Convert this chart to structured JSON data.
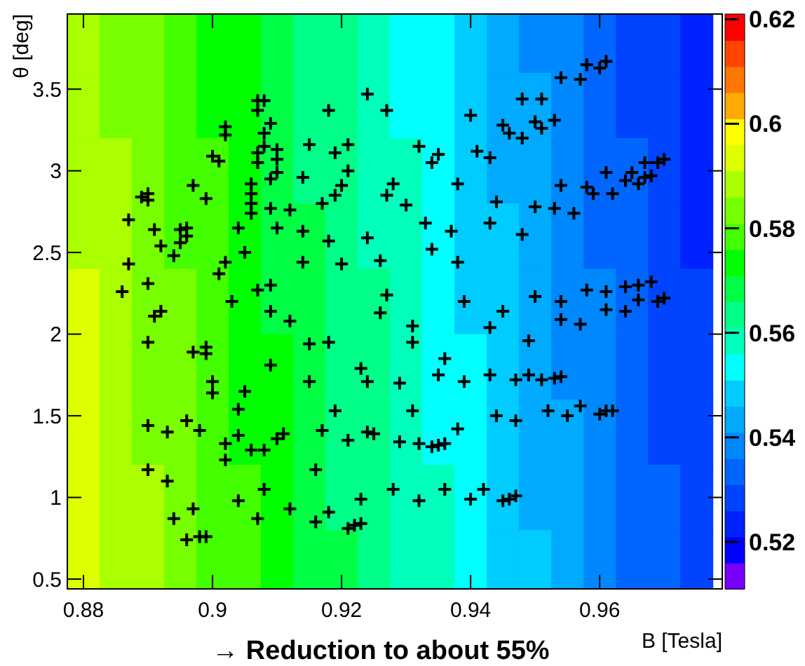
{
  "chart_data": {
    "type": "heatmap",
    "xlabel": "B [Tesla]",
    "ylabel": "θ [deg]",
    "annotations": [
      "→ Reduction to about 55%"
    ],
    "x": [
      0.88,
      0.885,
      0.89,
      0.895,
      0.9,
      0.905,
      0.91,
      0.915,
      0.92,
      0.925,
      0.93,
      0.935,
      0.94,
      0.945,
      0.95,
      0.955,
      0.96,
      0.965,
      0.97,
      0.975
    ],
    "y": [
      3.8,
      3.4,
      3.0,
      2.6,
      2.2,
      1.8,
      1.4,
      1.0,
      0.6
    ],
    "cells": [
      [
        0.589,
        0.586,
        0.582,
        0.579,
        0.575,
        0.572,
        0.568,
        0.565,
        0.561,
        0.558,
        0.554,
        0.551,
        0.547,
        0.544,
        0.54,
        0.537,
        0.533,
        0.53,
        0.526,
        0.523
      ],
      [
        0.59,
        0.586,
        0.583,
        0.579,
        0.576,
        0.572,
        0.569,
        0.565,
        0.562,
        0.558,
        0.555,
        0.551,
        0.548,
        0.544,
        0.541,
        0.537,
        0.534,
        0.53,
        0.527,
        0.523
      ],
      [
        0.591,
        0.587,
        0.584,
        0.58,
        0.577,
        0.573,
        0.57,
        0.566,
        0.563,
        0.559,
        0.556,
        0.552,
        0.549,
        0.545,
        0.542,
        0.538,
        0.535,
        0.531,
        0.528,
        0.524
      ],
      [
        0.591,
        0.588,
        0.584,
        0.581,
        0.577,
        0.574,
        0.57,
        0.567,
        0.563,
        0.56,
        0.556,
        0.553,
        0.549,
        0.546,
        0.542,
        0.539,
        0.535,
        0.532,
        0.528,
        0.525
      ],
      [
        0.592,
        0.589,
        0.585,
        0.582,
        0.578,
        0.575,
        0.571,
        0.568,
        0.564,
        0.561,
        0.557,
        0.554,
        0.55,
        0.547,
        0.543,
        0.54,
        0.536,
        0.533,
        0.529,
        0.526
      ],
      [
        0.593,
        0.589,
        0.586,
        0.582,
        0.579,
        0.575,
        0.572,
        0.568,
        0.565,
        0.561,
        0.558,
        0.554,
        0.551,
        0.547,
        0.544,
        0.54,
        0.537,
        0.533,
        0.53,
        0.526
      ],
      [
        0.593,
        0.59,
        0.586,
        0.583,
        0.579,
        0.576,
        0.572,
        0.569,
        0.565,
        0.562,
        0.558,
        0.555,
        0.551,
        0.548,
        0.544,
        0.541,
        0.537,
        0.534,
        0.53,
        0.527
      ],
      [
        0.594,
        0.591,
        0.587,
        0.584,
        0.58,
        0.577,
        0.573,
        0.57,
        0.566,
        0.563,
        0.559,
        0.556,
        0.552,
        0.549,
        0.545,
        0.542,
        0.538,
        0.535,
        0.531,
        0.528
      ],
      [
        0.595,
        0.591,
        0.588,
        0.584,
        0.581,
        0.577,
        0.574,
        0.57,
        0.567,
        0.563,
        0.56,
        0.556,
        0.553,
        0.549,
        0.546,
        0.542,
        0.539,
        0.535,
        0.532,
        0.528
      ]
    ],
    "clim": [
      0.511,
      0.621
    ],
    "cticks": [
      0.52,
      0.54,
      0.56,
      0.58,
      0.6,
      0.62
    ],
    "colors": [
      "#7700ff",
      "#0000ff",
      "#0022ff",
      "#0044ff",
      "#0066ff",
      "#0088ff",
      "#00aaff",
      "#00ccff",
      "#00ffff",
      "#00ffbb",
      "#00ff88",
      "#00ff44",
      "#00ff00",
      "#44ff00",
      "#77ff00",
      "#aaff00",
      "#ddff00",
      "#ffff00",
      "#ffaa00",
      "#ff7700",
      "#ff4400",
      "#ff0000"
    ],
    "xlim": [
      0.8775,
      0.979
    ],
    "ylim": [
      0.44,
      3.96
    ],
    "xticks": [
      0.88,
      0.9,
      0.92,
      0.94,
      0.96
    ],
    "yticks": [
      0.5,
      1,
      1.5,
      2,
      2.5,
      3,
      3.5
    ],
    "marker": "cross",
    "series": [
      {
        "type": "scatter",
        "color": "#000000",
        "x": [
          0.924,
          0.918,
          0.927,
          0.907,
          0.908,
          0.907,
          0.909,
          0.902,
          0.902,
          0.908,
          0.908,
          0.907,
          0.907,
          0.91,
          0.91,
          0.9,
          0.901,
          0.915,
          0.919,
          0.921,
          0.921,
          0.91,
          0.909,
          0.914,
          0.906,
          0.906,
          0.906,
          0.906,
          0.897,
          0.899,
          0.889,
          0.89,
          0.89,
          0.887,
          0.891,
          0.892,
          0.895,
          0.894,
          0.895,
          0.896,
          0.896,
          0.904,
          0.905,
          0.902,
          0.901,
          0.909,
          0.912,
          0.91,
          0.914,
          0.914,
          0.918,
          0.917,
          0.919,
          0.92,
          0.928,
          0.927,
          0.93,
          0.932,
          0.924,
          0.926,
          0.92,
          0.887,
          0.886,
          0.89,
          0.907,
          0.909,
          0.903,
          0.927,
          0.961,
          0.96,
          0.958,
          0.957,
          0.954,
          0.948,
          0.951,
          0.94,
          0.945,
          0.946,
          0.948,
          0.95,
          0.951,
          0.953,
          0.935,
          0.934,
          0.941,
          0.943,
          0.938,
          0.944,
          0.933,
          0.937,
          0.943,
          0.934,
          0.938,
          0.948,
          0.95,
          0.953,
          0.956,
          0.954,
          0.958,
          0.959,
          0.962,
          0.961,
          0.964,
          0.966,
          0.965,
          0.967,
          0.969,
          0.97,
          0.967,
          0.968,
          0.939,
          0.95,
          0.954,
          0.958,
          0.961,
          0.964,
          0.966,
          0.968,
          0.966,
          0.969,
          0.97,
          0.892,
          0.891,
          0.909,
          0.912,
          0.89,
          0.897,
          0.899,
          0.899,
          0.9,
          0.9,
          0.905,
          0.909,
          0.915,
          0.918,
          0.915,
          0.923,
          0.924,
          0.904,
          0.89,
          0.893,
          0.896,
          0.898,
          0.902,
          0.902,
          0.904,
          0.906,
          0.908,
          0.91,
          0.911,
          0.919,
          0.917,
          0.921,
          0.924,
          0.925,
          0.89,
          0.893,
          0.904,
          0.908,
          0.897,
          0.894,
          0.896,
          0.898,
          0.899,
          0.907,
          0.912,
          0.916,
          0.916,
          0.918,
          0.923,
          0.921,
          0.922,
          0.923,
          0.928,
          0.929,
          0.929,
          0.931,
          0.931,
          0.931,
          0.932,
          0.926,
          0.945,
          0.957,
          0.961,
          0.964,
          0.943,
          0.949,
          0.936,
          0.935,
          0.939,
          0.943,
          0.947,
          0.949,
          0.951,
          0.953,
          0.954,
          0.944,
          0.947,
          0.938,
          0.952,
          0.955,
          0.957,
          0.96,
          0.961,
          0.962,
          0.934,
          0.935,
          0.936,
          0.932,
          0.936,
          0.94,
          0.942,
          0.945,
          0.946,
          0.947,
          0.954
        ],
        "values": [
          3.47,
          3.37,
          3.37,
          3.43,
          3.43,
          3.37,
          3.29,
          3.27,
          3.22,
          3.23,
          3.15,
          3.11,
          3.05,
          3.13,
          3.07,
          3.09,
          3.06,
          3.16,
          3.11,
          3.16,
          3.0,
          2.99,
          2.95,
          2.96,
          2.92,
          2.86,
          2.8,
          2.74,
          2.91,
          2.83,
          2.84,
          2.82,
          2.86,
          2.7,
          2.64,
          2.54,
          2.56,
          2.48,
          2.64,
          2.65,
          2.6,
          2.65,
          2.5,
          2.44,
          2.37,
          2.77,
          2.76,
          2.65,
          2.63,
          2.44,
          2.57,
          2.8,
          2.85,
          2.91,
          2.92,
          2.85,
          2.79,
          3.15,
          2.59,
          2.45,
          2.43,
          2.43,
          2.26,
          2.31,
          2.27,
          2.3,
          2.2,
          2.24,
          3.67,
          3.63,
          3.65,
          3.56,
          3.57,
          3.44,
          3.44,
          3.34,
          3.28,
          3.23,
          3.2,
          3.3,
          3.26,
          3.31,
          3.1,
          3.05,
          3.12,
          3.08,
          2.92,
          2.81,
          2.68,
          2.63,
          2.68,
          2.52,
          2.44,
          2.61,
          2.78,
          2.77,
          2.74,
          2.91,
          2.9,
          2.86,
          2.86,
          2.99,
          2.94,
          2.92,
          2.99,
          3.05,
          3.05,
          3.07,
          2.96,
          2.97,
          2.2,
          2.23,
          2.2,
          2.27,
          2.26,
          2.29,
          2.3,
          2.32,
          2.21,
          2.2,
          2.22,
          2.14,
          2.11,
          2.14,
          2.08,
          1.95,
          1.89,
          1.92,
          1.88,
          1.71,
          1.64,
          1.65,
          1.81,
          1.94,
          1.95,
          1.71,
          1.79,
          1.71,
          1.54,
          1.44,
          1.4,
          1.47,
          1.41,
          1.33,
          1.23,
          1.38,
          1.29,
          1.29,
          1.36,
          1.39,
          1.53,
          1.41,
          1.35,
          1.4,
          1.39,
          1.17,
          1.1,
          0.98,
          1.05,
          0.93,
          0.87,
          0.74,
          0.76,
          0.76,
          0.87,
          0.93,
          1.17,
          0.85,
          0.91,
          0.99,
          0.81,
          0.83,
          0.84,
          1.05,
          1.34,
          1.7,
          2.05,
          1.95,
          1.53,
          1.33,
          2.13,
          2.14,
          2.06,
          2.15,
          2.14,
          2.04,
          1.96,
          1.85,
          1.75,
          1.71,
          1.75,
          1.72,
          1.75,
          1.72,
          1.73,
          1.74,
          1.5,
          1.47,
          1.42,
          1.53,
          1.5,
          1.56,
          1.51,
          1.53,
          1.53,
          1.31,
          1.32,
          1.33,
          0.98,
          1.05,
          0.99,
          1.05,
          0.98,
          0.99,
          1.01,
          2.09
        ]
      }
    ]
  }
}
